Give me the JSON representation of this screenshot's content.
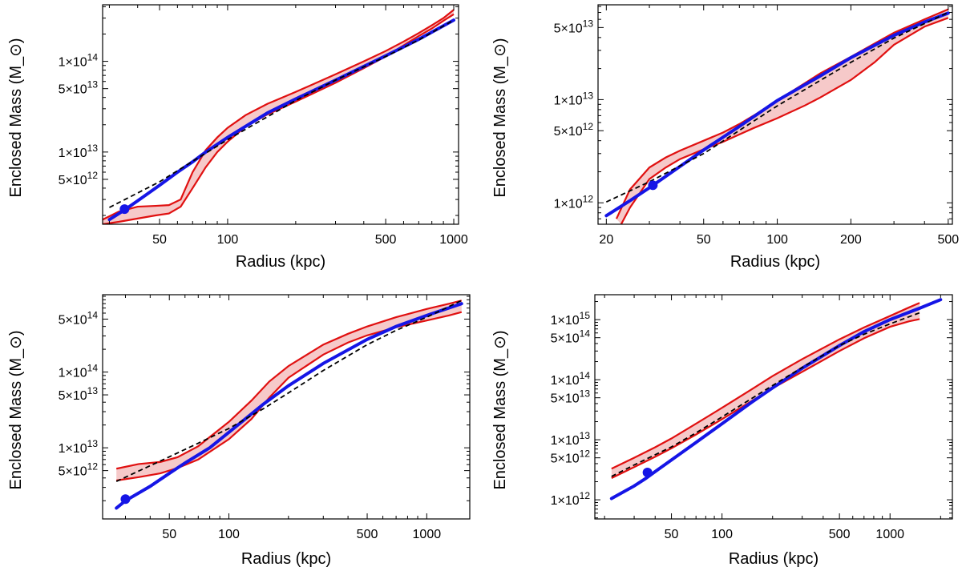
{
  "chart_data": [
    {
      "type": "line",
      "panel": "top-left",
      "xlabel": "Radius (kpc)",
      "ylabel": "Enclosed Mass (M_⊙)",
      "xscale": "log",
      "yscale": "log",
      "xlim": [
        28,
        1050
      ],
      "ylim": [
        1600000000000.0,
        420000000000000.0
      ],
      "xticks": [
        {
          "v": 50,
          "t": "50"
        },
        {
          "v": 100,
          "t": "100"
        },
        {
          "v": 500,
          "t": "500"
        },
        {
          "v": 1000,
          "t": "1000"
        }
      ],
      "yticks": [
        {
          "v": 100000000000000.0,
          "m": "1",
          "e": "14",
          "show1": true
        },
        {
          "v": 50000000000000.0,
          "m": "5",
          "e": "13",
          "show1": false
        },
        {
          "v": 10000000000000.0,
          "m": "1",
          "e": "13",
          "show1": true
        },
        {
          "v": 5000000000000.0,
          "m": "5",
          "e": "12",
          "show1": false
        }
      ],
      "series": [
        {
          "name": "uncertainty upper",
          "x": [
            28,
            33,
            40,
            48,
            55,
            62,
            70,
            80,
            90,
            100,
            120,
            150,
            200,
            300,
            400,
            500,
            600,
            700,
            800,
            900,
            1000
          ],
          "y": [
            1800000000000.0,
            2200000000000.0,
            2500000000000.0,
            2550000000000.0,
            2600000000000.0,
            3000000000000.0,
            6000000000000.0,
            10500000000000.0,
            14500000000000.0,
            18500000000000.0,
            25500000000000.0,
            34000000000000.0,
            46000000000000.0,
            72000000000000.0,
            100000000000000.0,
            130000000000000.0,
            165000000000000.0,
            205000000000000.0,
            250000000000000.0,
            300000000000000.0,
            370000000000000.0
          ]
        },
        {
          "name": "uncertainty lower",
          "x": [
            28,
            33,
            40,
            48,
            55,
            62,
            70,
            80,
            90,
            100,
            120,
            150,
            200,
            300,
            400,
            500,
            600,
            700,
            800,
            900,
            1000
          ],
          "y": [
            1600000000000.0,
            1700000000000.0,
            1850000000000.0,
            2000000000000.0,
            2100000000000.0,
            2500000000000.0,
            4000000000000.0,
            6800000000000.0,
            10000000000000.0,
            13000000000000.0,
            19000000000000.0,
            26000000000000.0,
            36000000000000.0,
            58000000000000.0,
            84000000000000.0,
            113000000000000.0,
            150000000000000.0,
            190000000000000.0,
            230000000000000.0,
            280000000000000.0,
            330000000000000.0
          ]
        },
        {
          "name": "model (blue)",
          "x": [
            30,
            35,
            40,
            50,
            60,
            70,
            80,
            100,
            150,
            200,
            300,
            500,
            700,
            1000
          ],
          "y": [
            1800000000000.0,
            2300000000000.0,
            2900000000000.0,
            4300000000000.0,
            6000000000000.0,
            7800000000000.0,
            10000000000000.0,
            14500000000000.0,
            27000000000000.0,
            38500000000000.0,
            62000000000000.0,
            115000000000000.0,
            175000000000000.0,
            285000000000000.0
          ]
        },
        {
          "name": "fit (dashed)",
          "x": [
            30,
            50,
            100,
            200,
            300,
            500,
            700,
            1000
          ],
          "y": [
            2450000000000.0,
            4700000000000.0,
            13700000000000.0,
            37000000000000.0,
            62000000000000.0,
            113000000000000.0,
            172000000000000.0,
            285000000000000.0
          ]
        }
      ],
      "marker": {
        "x": 35,
        "y": 2350000000000.0
      }
    },
    {
      "type": "line",
      "panel": "top-right",
      "xlabel": "Radius (kpc)",
      "ylabel": "Enclosed Mass (M_⊙)",
      "xscale": "log",
      "yscale": "log",
      "xlim": [
        18.5,
        520
      ],
      "ylim": [
        620000000000.0,
        83000000000000.0
      ],
      "xticks": [
        {
          "v": 20,
          "t": "20"
        },
        {
          "v": 50,
          "t": "50"
        },
        {
          "v": 100,
          "t": "100"
        },
        {
          "v": 200,
          "t": "200"
        },
        {
          "v": 500,
          "t": "500"
        }
      ],
      "yticks": [
        {
          "v": 50000000000000.0,
          "m": "5",
          "e": "13",
          "show1": false
        },
        {
          "v": 10000000000000.0,
          "m": "1",
          "e": "13",
          "show1": true
        },
        {
          "v": 5000000000000.0,
          "m": "5",
          "e": "12",
          "show1": false
        },
        {
          "v": 1000000000000.0,
          "m": "1",
          "e": "12",
          "show1": true
        }
      ],
      "series": [
        {
          "name": "uncertainty upper",
          "x": [
            22,
            25,
            30,
            35,
            40,
            50,
            60,
            70,
            80,
            100,
            130,
            150,
            200,
            250,
            300,
            400,
            500
          ],
          "y": [
            700000000000.0,
            1350000000000.0,
            2200000000000.0,
            2750000000000.0,
            3200000000000.0,
            4000000000000.0,
            4800000000000.0,
            5800000000000.0,
            7000000000000.0,
            9800000000000.0,
            14500000000000.0,
            18000000000000.0,
            26000000000000.0,
            35000000000000.0,
            44500000000000.0,
            60000000000000.0,
            75000000000000.0
          ]
        },
        {
          "name": "uncertainty lower",
          "x": [
            23,
            25,
            30,
            35,
            40,
            50,
            60,
            70,
            80,
            100,
            130,
            150,
            200,
            250,
            300,
            400,
            500
          ],
          "y": [
            620000000000.0,
            900000000000.0,
            1700000000000.0,
            2200000000000.0,
            2650000000000.0,
            3300000000000.0,
            3900000000000.0,
            4600000000000.0,
            5300000000000.0,
            6600000000000.0,
            8800000000000.0,
            10500000000000.0,
            15500000000000.0,
            23000000000000.0,
            34000000000000.0,
            51000000000000.0,
            62000000000000.0
          ]
        },
        {
          "name": "model (blue)",
          "x": [
            20,
            25,
            30,
            40,
            50,
            70,
            100,
            150,
            200,
            300,
            400,
            500
          ],
          "y": [
            750000000000.0,
            1050000000000.0,
            1400000000000.0,
            2250000000000.0,
            3250000000000.0,
            5500000000000.0,
            9800000000000.0,
            17000000000000.0,
            25500000000000.0,
            42000000000000.0,
            56500000000000.0,
            69000000000000.0
          ]
        },
        {
          "name": "fit (dashed)",
          "x": [
            20,
            30,
            50,
            100,
            200,
            300,
            500
          ],
          "y": [
            1020000000000.0,
            1600000000000.0,
            3000000000000.0,
            8700000000000.0,
            23000000000000.0,
            39500000000000.0,
            70000000000000.0
          ]
        }
      ],
      "marker": {
        "x": 31,
        "y": 1480000000000.0
      }
    },
    {
      "type": "line",
      "panel": "bottom-left",
      "xlabel": "Radius (kpc)",
      "ylabel": "Enclosed Mass (M_⊙)",
      "xscale": "log",
      "yscale": "log",
      "xlim": [
        23,
        1650
      ],
      "ylim": [
        1150000000000.0,
        1050000000000000.0
      ],
      "xticks": [
        {
          "v": 50,
          "t": "50"
        },
        {
          "v": 100,
          "t": "100"
        },
        {
          "v": 500,
          "t": "500"
        },
        {
          "v": 1000,
          "t": "1000"
        }
      ],
      "yticks": [
        {
          "v": 500000000000000.0,
          "m": "5",
          "e": "14",
          "show1": false
        },
        {
          "v": 100000000000000.0,
          "m": "1",
          "e": "14",
          "show1": true
        },
        {
          "v": 50000000000000.0,
          "m": "5",
          "e": "13",
          "show1": false
        },
        {
          "v": 10000000000000.0,
          "m": "1",
          "e": "13",
          "show1": true
        },
        {
          "v": 5000000000000.0,
          "m": "5",
          "e": "12",
          "show1": false
        }
      ],
      "series": [
        {
          "name": "uncertainty upper",
          "x": [
            27,
            35,
            45,
            55,
            70,
            100,
            130,
            160,
            200,
            300,
            400,
            500,
            700,
            1000,
            1300,
            1500
          ],
          "y": [
            5300000000000.0,
            6100000000000.0,
            6500000000000.0,
            7500000000000.0,
            10500000000000.0,
            22000000000000.0,
            42000000000000.0,
            75000000000000.0,
            120000000000000.0,
            230000000000000.0,
            320000000000000.0,
            400000000000000.0,
            530000000000000.0,
            680000000000000.0,
            800000000000000.0,
            880000000000000.0
          ]
        },
        {
          "name": "uncertainty lower",
          "x": [
            27,
            35,
            45,
            55,
            70,
            100,
            130,
            160,
            200,
            300,
            400,
            500,
            700,
            1000,
            1300,
            1500
          ],
          "y": [
            3700000000000.0,
            4100000000000.0,
            4600000000000.0,
            5400000000000.0,
            7000000000000.0,
            13000000000000.0,
            24000000000000.0,
            46000000000000.0,
            84000000000000.0,
            170000000000000.0,
            245000000000000.0,
            305000000000000.0,
            390000000000000.0,
            480000000000000.0,
            560000000000000.0,
            620000000000000.0
          ]
        },
        {
          "name": "model (blue)",
          "x": [
            27,
            30,
            40,
            50,
            60,
            80,
            100,
            150,
            200,
            300,
            500,
            700,
            1000,
            1500
          ],
          "y": [
            1600000000000.0,
            2000000000000.0,
            3100000000000.0,
            4600000000000.0,
            6300000000000.0,
            10000000000000.0,
            16000000000000.0,
            38000000000000.0,
            66000000000000.0,
            130000000000000.0,
            270000000000000.0,
            400000000000000.0,
            560000000000000.0,
            800000000000000.0
          ]
        },
        {
          "name": "fit (dashed)",
          "x": [
            27,
            40,
            50,
            70,
            100,
            150,
            200,
            300,
            500,
            700,
            1000,
            1500
          ],
          "y": [
            3600000000000.0,
            5800000000000.0,
            7600000000000.0,
            11500000000000.0,
            18000000000000.0,
            33000000000000.0,
            53000000000000.0,
            105000000000000.0,
            230000000000000.0,
            355000000000000.0,
            530000000000000.0,
            880000000000000.0
          ]
        }
      ],
      "marker": {
        "x": 30,
        "y": 2100000000000.0
      }
    },
    {
      "type": "line",
      "panel": "bottom-right",
      "xlabel": "Radius (kpc)",
      "ylabel": "Enclosed Mass (M_⊙)",
      "xscale": "log",
      "yscale": "log",
      "xlim": [
        17.5,
        2350
      ],
      "ylim": [
        480000000000.0,
        2600000000000000.0
      ],
      "xticks": [
        {
          "v": 50,
          "t": "50"
        },
        {
          "v": 100,
          "t": "100"
        },
        {
          "v": 500,
          "t": "500"
        },
        {
          "v": 1000,
          "t": "1000"
        }
      ],
      "yticks": [
        {
          "v": 1000000000000000.0,
          "m": "1",
          "e": "15",
          "show1": true
        },
        {
          "v": 500000000000000.0,
          "m": "5",
          "e": "14",
          "show1": false
        },
        {
          "v": 100000000000000.0,
          "m": "1",
          "e": "14",
          "show1": true
        },
        {
          "v": 50000000000000.0,
          "m": "5",
          "e": "13",
          "show1": false
        },
        {
          "v": 10000000000000.0,
          "m": "1",
          "e": "13",
          "show1": true
        },
        {
          "v": 5000000000000.0,
          "m": "5",
          "e": "12",
          "show1": false
        },
        {
          "v": 1000000000000.0,
          "m": "1",
          "e": "12",
          "show1": true
        }
      ],
      "series": [
        {
          "name": "uncertainty upper",
          "x": [
            22,
            30,
            40,
            50,
            70,
            100,
            150,
            200,
            300,
            500,
            700,
            1000,
            1300,
            1500
          ],
          "y": [
            3300000000000.0,
            5000000000000.0,
            7500000000000.0,
            10500000000000.0,
            18500000000000.0,
            34000000000000.0,
            69000000000000.0,
            115000000000000.0,
            220000000000000.0,
            470000000000000.0,
            740000000000000.0,
            1150000000000000.0,
            1600000000000000.0,
            1900000000000000.0
          ]
        },
        {
          "name": "uncertainty lower",
          "x": [
            22,
            30,
            40,
            50,
            70,
            100,
            150,
            200,
            300,
            500,
            700,
            1000,
            1300,
            1500
          ],
          "y": [
            2300000000000.0,
            3500000000000.0,
            5200000000000.0,
            7200000000000.0,
            12200000000000.0,
            22000000000000.0,
            44000000000000.0,
            72000000000000.0,
            135000000000000.0,
            300000000000000.0,
            490000000000000.0,
            760000000000000.0,
            940000000000000.0,
            1020000000000000.0
          ]
        },
        {
          "name": "model (blue)",
          "x": [
            22,
            30,
            35,
            40,
            50,
            70,
            100,
            150,
            200,
            300,
            500,
            700,
            1000,
            1500,
            2000
          ],
          "y": [
            1050000000000.0,
            1700000000000.0,
            2250000000000.0,
            2950000000000.0,
            4600000000000.0,
            9000000000000.0,
            18500000000000.0,
            42000000000000.0,
            73000000000000.0,
            155000000000000.0,
            370000000000000.0,
            630000000000000.0,
            1000000000000000.0,
            1550000000000000.0,
            2150000000000000.0
          ]
        },
        {
          "name": "fit (dashed)",
          "x": [
            22,
            30,
            50,
            70,
            100,
            150,
            200,
            300,
            500,
            700,
            1000,
            1500
          ],
          "y": [
            2450000000000.0,
            3800000000000.0,
            7600000000000.0,
            13000000000000.0,
            24000000000000.0,
            48500000000000.0,
            80000000000000.0,
            160000000000000.0,
            370000000000000.0,
            570000000000000.0,
            850000000000000.0,
            1300000000000000.0
          ]
        }
      ],
      "marker": {
        "x": 36,
        "y": 2850000000000.0
      }
    }
  ]
}
